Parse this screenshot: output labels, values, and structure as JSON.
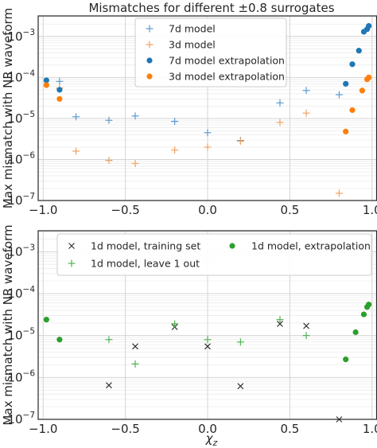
{
  "chart_data": [
    {
      "type": "scatter",
      "title": "Mismatches for different ±0.8 surrogates",
      "xlabel": "",
      "ylabel": "Max mismatch with NR waveform",
      "xlim": [
        -1.03,
        1.03
      ],
      "ylim_log10": [
        -7,
        -2.5
      ],
      "xticks": [
        -1.0,
        -0.5,
        0.0,
        0.5,
        1.0
      ],
      "xtick_labels": [
        "−1.0",
        "−0.5",
        "0.0",
        "0.5",
        "1.0"
      ],
      "ytick_exponents": [
        -7,
        -6,
        -5,
        -4,
        -3
      ],
      "ytick_labels": [
        "7",
        "6",
        "5",
        "4",
        "3"
      ],
      "ytick_base": "10",
      "grid": true,
      "log_scale_y": true,
      "legend_position": "upper-center",
      "series": [
        {
          "name": "7d model",
          "marker": "plus",
          "color": "#5b9bd0",
          "points": [
            [
              -0.9,
              8e-05
            ],
            [
              -0.8,
              1.1e-05
            ],
            [
              -0.6,
              9e-06
            ],
            [
              -0.44,
              1.15e-05
            ],
            [
              -0.2,
              8.5e-06
            ],
            [
              0.0,
              4.5e-06
            ],
            [
              0.2,
              2.9e-06
            ],
            [
              0.44,
              2.4e-05
            ],
            [
              0.6,
              4.8e-05
            ],
            [
              0.8,
              3.8e-05
            ]
          ]
        },
        {
          "name": "3d model",
          "marker": "plus",
          "color": "#f2a15e",
          "points": [
            [
              -0.9,
              5.5e-05
            ],
            [
              -0.8,
              1.6e-06
            ],
            [
              -0.6,
              9.5e-07
            ],
            [
              -0.44,
              8e-07
            ],
            [
              -0.2,
              1.7e-06
            ],
            [
              0.0,
              2e-06
            ],
            [
              0.2,
              2.8e-06
            ],
            [
              0.44,
              8e-06
            ],
            [
              0.6,
              1.35e-05
            ],
            [
              0.8,
              1.5e-07
            ]
          ]
        },
        {
          "name": "7d model extrapolation",
          "marker": "dot",
          "color": "#1f77b4",
          "points": [
            [
              -0.98,
              8.5e-05
            ],
            [
              -0.9,
              5e-05
            ],
            [
              0.84,
              7e-05
            ],
            [
              0.88,
              0.00021
            ],
            [
              0.92,
              0.00045
            ],
            [
              0.95,
              0.0013
            ],
            [
              0.97,
              0.0015
            ],
            [
              0.98,
              0.0018
            ]
          ]
        },
        {
          "name": "3d model extrapolation",
          "marker": "dot",
          "color": "#ff7f0e",
          "points": [
            [
              -0.98,
              6.5e-05
            ],
            [
              -0.9,
              3e-05
            ],
            [
              0.84,
              4.8e-06
            ],
            [
              0.88,
              1.6e-05
            ],
            [
              0.94,
              4.8e-05
            ],
            [
              0.97,
              9e-05
            ],
            [
              0.98,
              0.0001
            ]
          ]
        }
      ]
    },
    {
      "type": "scatter",
      "title": "",
      "xlabel": "χz",
      "xlabel_main": "χ",
      "xlabel_sub": "z",
      "ylabel": "Max mismatch with NR waveform",
      "xlim": [
        -1.03,
        1.03
      ],
      "ylim_log10": [
        -7,
        -2.5
      ],
      "xticks": [
        -1.0,
        -0.5,
        0.0,
        0.5,
        1.0
      ],
      "xtick_labels": [
        "−1.0",
        "−0.5",
        "0.0",
        "0.5",
        "1.0"
      ],
      "ytick_exponents": [
        -7,
        -6,
        -5,
        -4,
        -3
      ],
      "ytick_labels": [
        "7",
        "6",
        "5",
        "4",
        "3"
      ],
      "ytick_base": "10",
      "grid": true,
      "log_scale_y": true,
      "legend_position": "top",
      "series": [
        {
          "name": "1d model, training set",
          "marker": "x",
          "color": "#333333",
          "points": [
            [
              -0.6,
              6.5e-07
            ],
            [
              -0.44,
              5.5e-06
            ],
            [
              -0.2,
              1.6e-05
            ],
            [
              0.0,
              5.5e-06
            ],
            [
              0.2,
              6.2e-07
            ],
            [
              0.44,
              1.9e-05
            ],
            [
              0.6,
              1.7e-05
            ],
            [
              0.8,
              1e-07
            ]
          ]
        },
        {
          "name": "1d model, leave 1 out",
          "marker": "plus",
          "color": "#4fb34f",
          "points": [
            [
              -0.6,
              8e-06
            ],
            [
              -0.44,
              2.1e-06
            ],
            [
              -0.2,
              1.9e-05
            ],
            [
              0.0,
              8e-06
            ],
            [
              0.2,
              7e-06
            ],
            [
              0.44,
              2.4e-05
            ],
            [
              0.6,
              1e-05
            ]
          ]
        },
        {
          "name": "1d model, extrapolation",
          "marker": "dot",
          "color": "#2ca02c",
          "points": [
            [
              -0.98,
              2.4e-05
            ],
            [
              -0.9,
              8e-06
            ],
            [
              0.84,
              2.7e-06
            ],
            [
              0.9,
              1.2e-05
            ],
            [
              0.95,
              3.2e-05
            ],
            [
              0.97,
              4.8e-05
            ],
            [
              0.98,
              5.5e-05
            ]
          ]
        }
      ]
    }
  ]
}
